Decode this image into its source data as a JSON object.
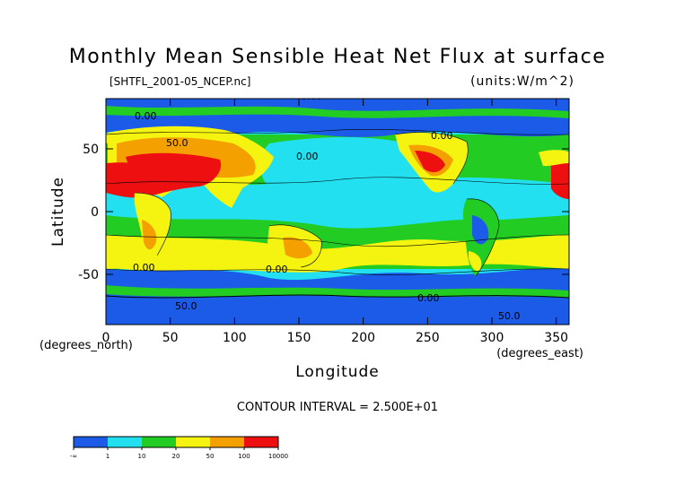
{
  "chart_data": {
    "type": "heatmap",
    "title": "Monthly Mean Sensible Heat Net Flux at surface",
    "source_file": "[SHTFL_2001-05_NCEP.nc]",
    "units": "(units:W/m^2)",
    "xlabel": "Longitude",
    "ylabel": "Latitude",
    "x_unit_label": "(degrees_east)",
    "y_unit_label": "(degrees_north)",
    "xlim": [
      0,
      360
    ],
    "ylim": [
      -90,
      90
    ],
    "x_ticks": [
      "0",
      "50",
      "100",
      "150",
      "200",
      "250",
      "300",
      "350"
    ],
    "y_ticks": [
      "50",
      "0",
      "-50"
    ],
    "contour_interval": "CONTOUR INTERVAL = 2.500E+01",
    "contour_labels": [
      "0.00",
      "0.00",
      "0.00",
      "0.00",
      "50.0",
      "0.00",
      "0.00",
      "50.0",
      "0.00",
      "50.0"
    ],
    "colorbar": {
      "colors": [
        "#1c5be8",
        "#22e0f0",
        "#22cc22",
        "#f4f410",
        "#f4a000",
        "#ee1010"
      ],
      "labels": [
        "-∞",
        "1",
        "10",
        "20",
        "50",
        "100",
        "10000"
      ]
    },
    "ocean_color": "#22e0f0"
  }
}
